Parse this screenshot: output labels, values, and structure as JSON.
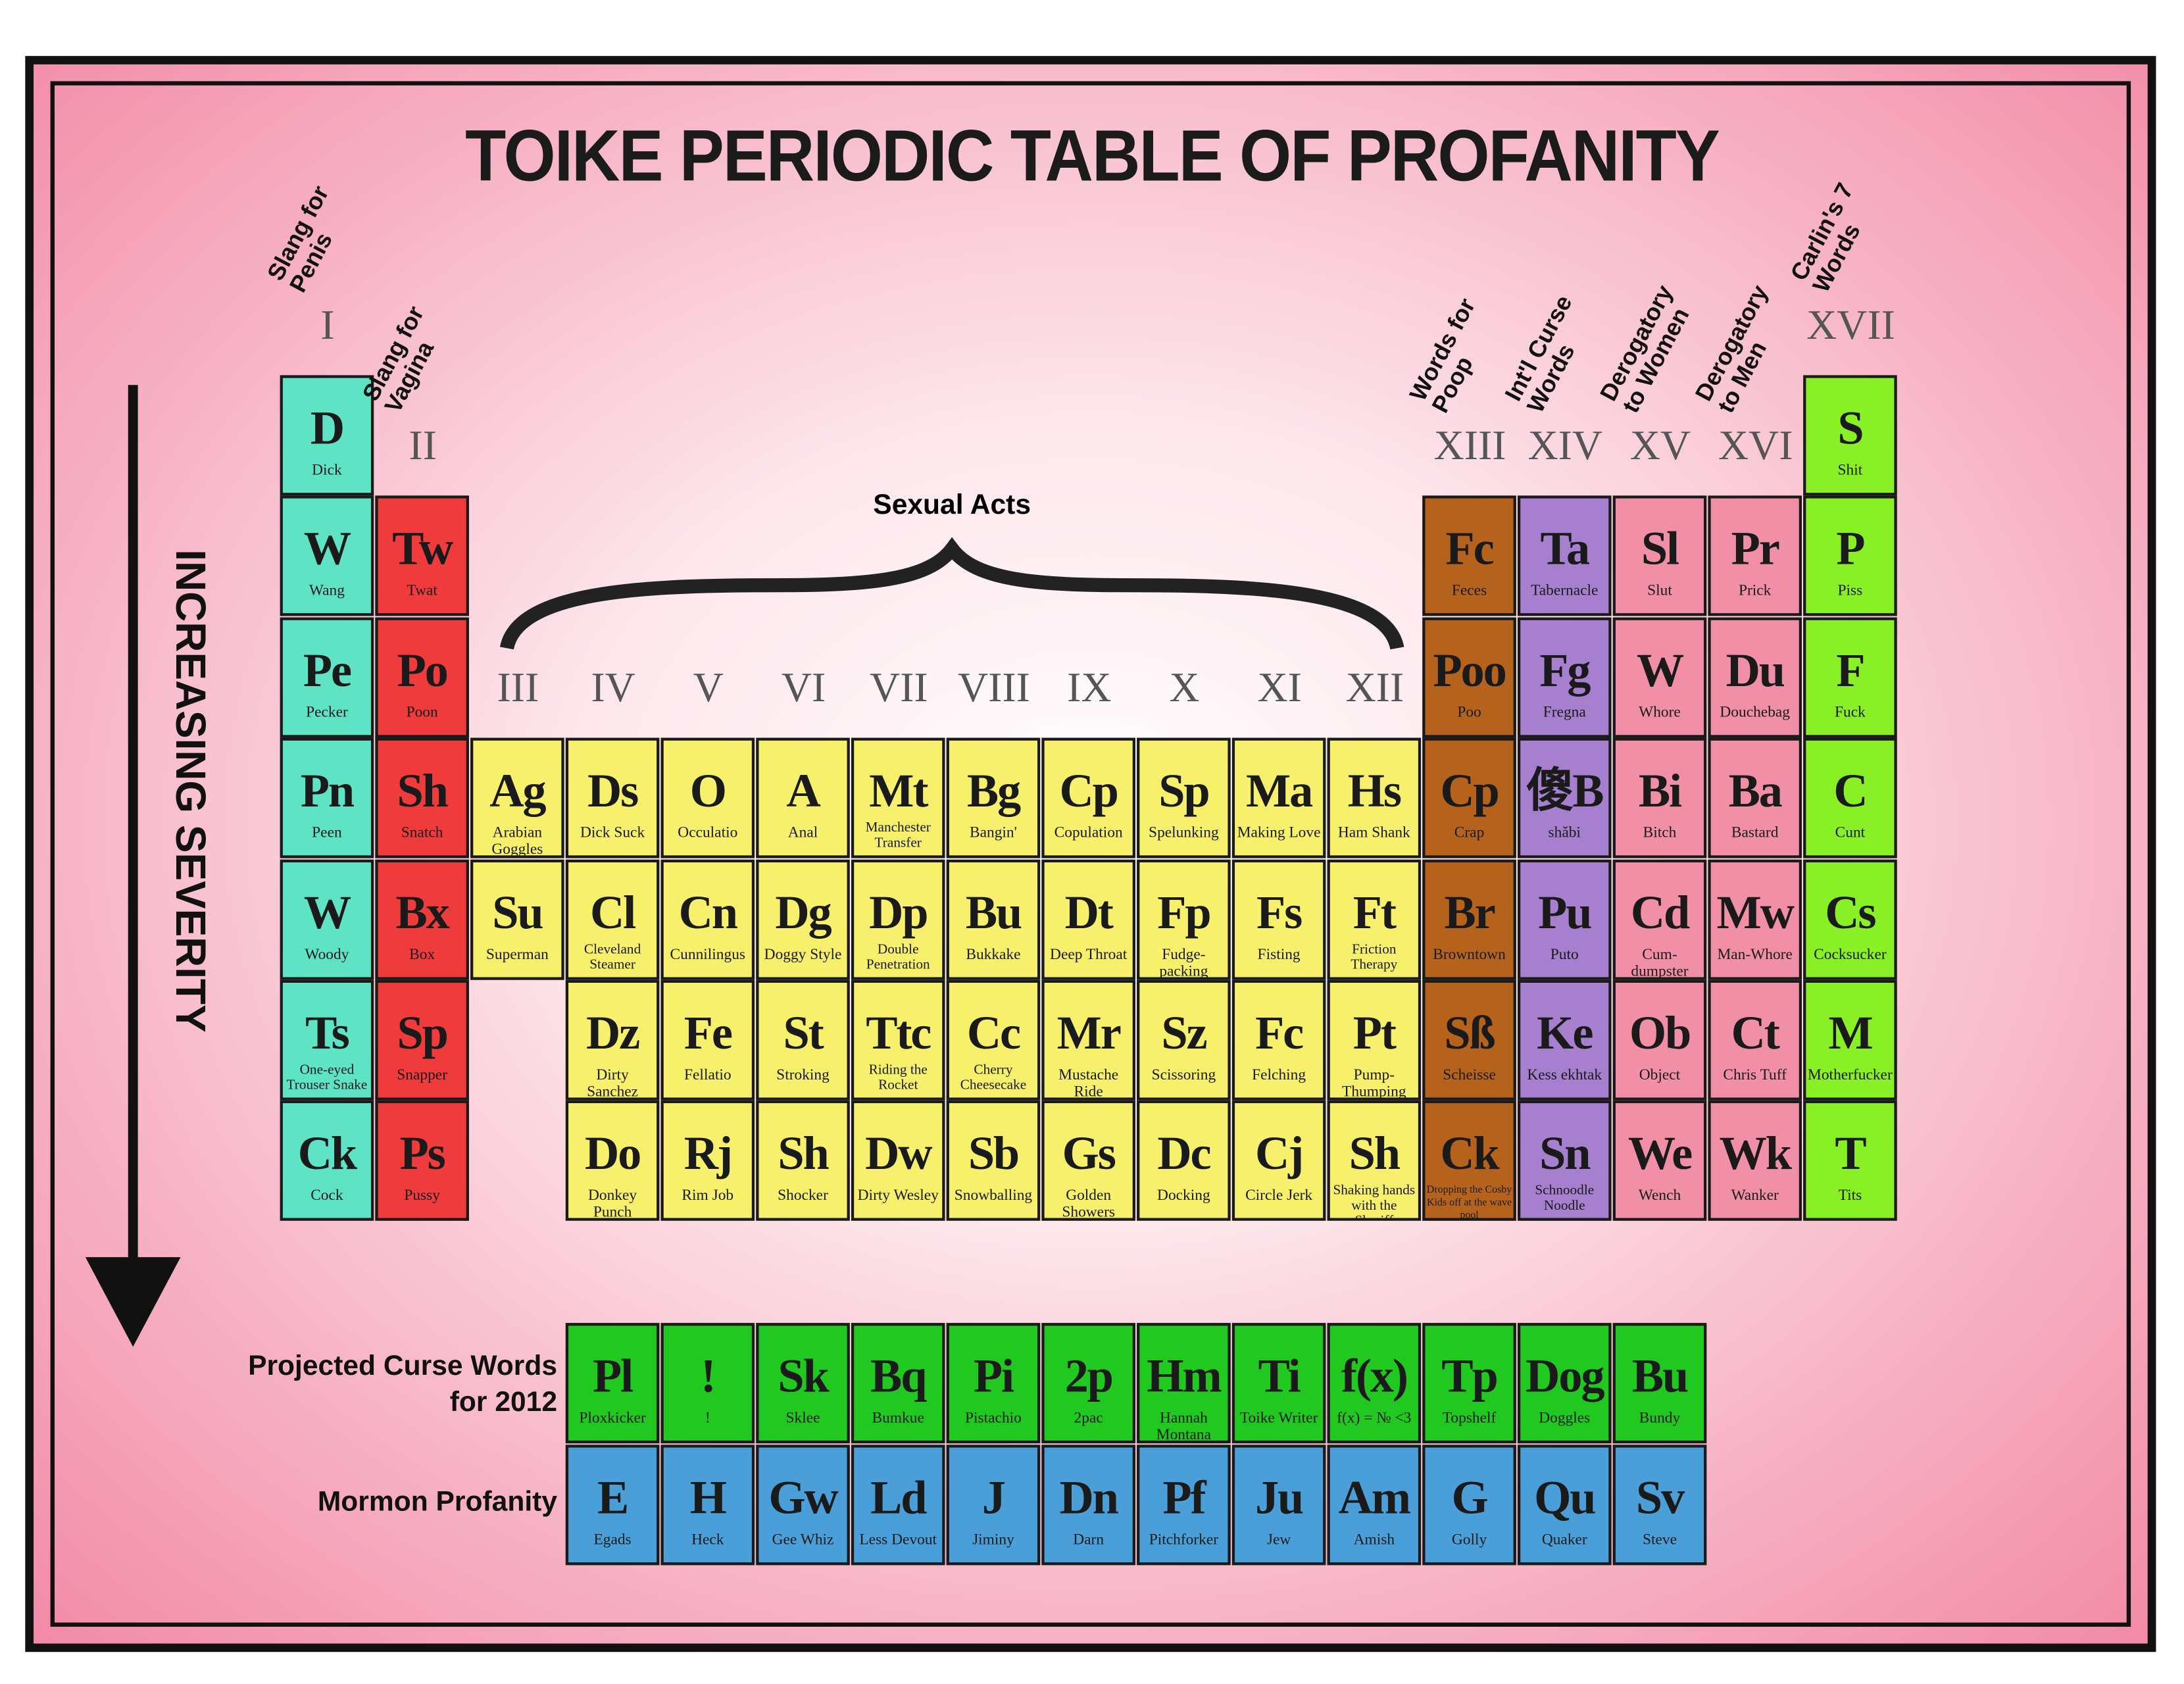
{
  "title": "TOIKE PERIODIC TABLE OF PROFANITY",
  "side_label": "INCREASING SEVERITY",
  "span_label": "Sexual Acts",
  "groups": [
    {
      "numeral": "I",
      "label": "Slang for Penis",
      "color": "#5fe3c5",
      "elements": [
        {
          "symbol": "D",
          "name": "Dick"
        },
        {
          "symbol": "W",
          "name": "Wang"
        },
        {
          "symbol": "Pe",
          "name": "Pecker"
        },
        {
          "symbol": "Pn",
          "name": "Peen"
        },
        {
          "symbol": "W",
          "name": "Woody"
        },
        {
          "symbol": "Ts",
          "name": "One-eyed Trouser Snake"
        },
        {
          "symbol": "Ck",
          "name": "Cock"
        }
      ]
    },
    {
      "numeral": "II",
      "label": "Slang for Vagina",
      "color": "#ef3b3b",
      "elements": [
        {
          "symbol": "Tw",
          "name": "Twat"
        },
        {
          "symbol": "Po",
          "name": "Poon"
        },
        {
          "symbol": "Sh",
          "name": "Snatch"
        },
        {
          "symbol": "Bx",
          "name": "Box"
        },
        {
          "symbol": "Sp",
          "name": "Snapper"
        },
        {
          "symbol": "Ps",
          "name": "Pussy"
        }
      ]
    },
    {
      "numeral": "III",
      "color": "#f6f06c",
      "elements": [
        {
          "symbol": "Ag",
          "name": "Arabian Goggles"
        },
        {
          "symbol": "Su",
          "name": "Superman"
        },
        null,
        null
      ]
    },
    {
      "numeral": "IV",
      "color": "#f6f06c",
      "elements": [
        {
          "symbol": "Ds",
          "name": "Dick Suck"
        },
        {
          "symbol": "Cl",
          "name": "Cleveland Steamer"
        },
        {
          "symbol": "Dz",
          "name": "Dirty Sanchez"
        },
        {
          "symbol": "Do",
          "name": "Donkey Punch"
        }
      ]
    },
    {
      "numeral": "V",
      "color": "#f6f06c",
      "elements": [
        {
          "symbol": "O",
          "name": "Occulatio"
        },
        {
          "symbol": "Cn",
          "name": "Cunnilingus"
        },
        {
          "symbol": "Fe",
          "name": "Fellatio"
        },
        {
          "symbol": "Rj",
          "name": "Rim Job"
        }
      ]
    },
    {
      "numeral": "VI",
      "color": "#f6f06c",
      "elements": [
        {
          "symbol": "A",
          "name": "Anal"
        },
        {
          "symbol": "Dg",
          "name": "Doggy Style"
        },
        {
          "symbol": "St",
          "name": "Stroking"
        },
        {
          "symbol": "Sh",
          "name": "Shocker"
        }
      ]
    },
    {
      "numeral": "VII",
      "color": "#f6f06c",
      "elements": [
        {
          "symbol": "Mt",
          "name": "Manchester Transfer"
        },
        {
          "symbol": "Dp",
          "name": "Double Penetration"
        },
        {
          "symbol": "Ttc",
          "name": "Riding the Rocket"
        },
        {
          "symbol": "Dw",
          "name": "Dirty Wesley"
        }
      ]
    },
    {
      "numeral": "VIII",
      "color": "#f6f06c",
      "elements": [
        {
          "symbol": "Bg",
          "name": "Bangin'"
        },
        {
          "symbol": "Bu",
          "name": "Bukkake"
        },
        {
          "symbol": "Cc",
          "name": "Cherry Cheesecake"
        },
        {
          "symbol": "Sb",
          "name": "Snowballing"
        }
      ]
    },
    {
      "numeral": "IX",
      "color": "#f6f06c",
      "elements": [
        {
          "symbol": "Cp",
          "name": "Copulation"
        },
        {
          "symbol": "Dt",
          "name": "Deep Throat"
        },
        {
          "symbol": "Mr",
          "name": "Mustache Ride"
        },
        {
          "symbol": "Gs",
          "name": "Golden Showers"
        }
      ]
    },
    {
      "numeral": "X",
      "color": "#f6f06c",
      "elements": [
        {
          "symbol": "Sp",
          "name": "Spelunking"
        },
        {
          "symbol": "Fp",
          "name": "Fudge-packing"
        },
        {
          "symbol": "Sz",
          "name": "Scissoring"
        },
        {
          "symbol": "Dc",
          "name": "Docking"
        }
      ]
    },
    {
      "numeral": "XI",
      "color": "#f6f06c",
      "elements": [
        {
          "symbol": "Ma",
          "name": "Making Love"
        },
        {
          "symbol": "Fs",
          "name": "Fisting"
        },
        {
          "symbol": "Fc",
          "name": "Felching"
        },
        {
          "symbol": "Cj",
          "name": "Circle Jerk"
        }
      ]
    },
    {
      "numeral": "XII",
      "color": "#f6f06c",
      "elements": [
        {
          "symbol": "Hs",
          "name": "Ham Shank"
        },
        {
          "symbol": "Ft",
          "name": "Friction Therapy"
        },
        {
          "symbol": "Pt",
          "name": "Pump-Thumping"
        },
        {
          "symbol": "Sh",
          "name": "Shaking hands with the Sheriff"
        }
      ]
    },
    {
      "numeral": "XIII",
      "label": "Words for Poop",
      "color": "#b5631c",
      "elements": [
        {
          "symbol": "Fc",
          "name": "Feces"
        },
        {
          "symbol": "Poo",
          "name": "Poo"
        },
        {
          "symbol": "Cp",
          "name": "Crap"
        },
        {
          "symbol": "Br",
          "name": "Browntown"
        },
        {
          "symbol": "Sß",
          "name": "Scheisse"
        },
        {
          "symbol": "Ck",
          "name": "Dropping the Cosby Kids off at the wave pool"
        }
      ]
    },
    {
      "numeral": "XIV",
      "label": "Int'l Curse Words",
      "color": "#a67fcf",
      "elements": [
        {
          "symbol": "Ta",
          "name": "Tabernacle"
        },
        {
          "symbol": "Fg",
          "name": "Fregna"
        },
        {
          "symbol": "傻B",
          "name": "shǎbi"
        },
        {
          "symbol": "Pu",
          "name": "Puto"
        },
        {
          "symbol": "Ke",
          "name": "Kess ekhtak"
        },
        {
          "symbol": "Sn",
          "name": "Schnoodle Noodle"
        }
      ]
    },
    {
      "numeral": "XV",
      "label": "Derogatory to Women",
      "color": "#f08fa5",
      "elements": [
        {
          "symbol": "Sl",
          "name": "Slut"
        },
        {
          "symbol": "W",
          "name": "Whore"
        },
        {
          "symbol": "Bi",
          "name": "Bitch"
        },
        {
          "symbol": "Cd",
          "name": "Cum-dumpster"
        },
        {
          "symbol": "Ob",
          "name": "Object"
        },
        {
          "symbol": "We",
          "name": "Wench"
        }
      ]
    },
    {
      "numeral": "XVI",
      "label": "Derogatory to Men",
      "color": "#f08fa5",
      "elements": [
        {
          "symbol": "Pr",
          "name": "Prick"
        },
        {
          "symbol": "Du",
          "name": "Douchebag"
        },
        {
          "symbol": "Ba",
          "name": "Bastard"
        },
        {
          "symbol": "Mw",
          "name": "Man-Whore"
        },
        {
          "symbol": "Ct",
          "name": "Chris Tuff"
        },
        {
          "symbol": "Wk",
          "name": "Wanker"
        }
      ]
    },
    {
      "numeral": "XVII",
      "label": "Carlin's 7 Words",
      "color": "#88f024",
      "elements": [
        {
          "symbol": "S",
          "name": "Shit"
        },
        {
          "symbol": "P",
          "name": "Piss"
        },
        {
          "symbol": "F",
          "name": "Fuck"
        },
        {
          "symbol": "C",
          "name": "Cunt"
        },
        {
          "symbol": "Cs",
          "name": "Cocksucker"
        },
        {
          "symbol": "M",
          "name": "Motherfucker"
        },
        {
          "symbol": "T",
          "name": "Tits"
        }
      ]
    }
  ],
  "extra_rows": [
    {
      "label": "Projected Curse Words for 2012",
      "color": "#20c820",
      "elements": [
        {
          "symbol": "Pl",
          "name": "Ploxkicker"
        },
        {
          "symbol": "!",
          "name": "!"
        },
        {
          "symbol": "Sk",
          "name": "Sklee"
        },
        {
          "symbol": "Bq",
          "name": "Bumkue"
        },
        {
          "symbol": "Pi",
          "name": "Pistachio"
        },
        {
          "symbol": "2p",
          "name": "2pac"
        },
        {
          "symbol": "Hm",
          "name": "Hannah Montana"
        },
        {
          "symbol": "Ti",
          "name": "Toike Writer"
        },
        {
          "symbol": "f(x)",
          "name": "f(x) = № <3"
        },
        {
          "symbol": "Tp",
          "name": "Topshelf"
        },
        {
          "symbol": "Dog",
          "name": "Doggles"
        },
        {
          "symbol": "Bu",
          "name": "Bundy"
        }
      ]
    },
    {
      "label": "Mormon Profanity",
      "color": "#4a9fd8",
      "elements": [
        {
          "symbol": "E",
          "name": "Egads"
        },
        {
          "symbol": "H",
          "name": "Heck"
        },
        {
          "symbol": "Gw",
          "name": "Gee Whiz"
        },
        {
          "symbol": "Ld",
          "name": "Less Devout"
        },
        {
          "symbol": "J",
          "name": "Jiminy"
        },
        {
          "symbol": "Dn",
          "name": "Darn"
        },
        {
          "symbol": "Pf",
          "name": "Pitchforker"
        },
        {
          "symbol": "Ju",
          "name": "Jew"
        },
        {
          "symbol": "Am",
          "name": "Amish"
        },
        {
          "symbol": "G",
          "name": "Golly"
        },
        {
          "symbol": "Qu",
          "name": "Quaker"
        },
        {
          "symbol": "Sv",
          "name": "Steve"
        }
      ]
    }
  ]
}
